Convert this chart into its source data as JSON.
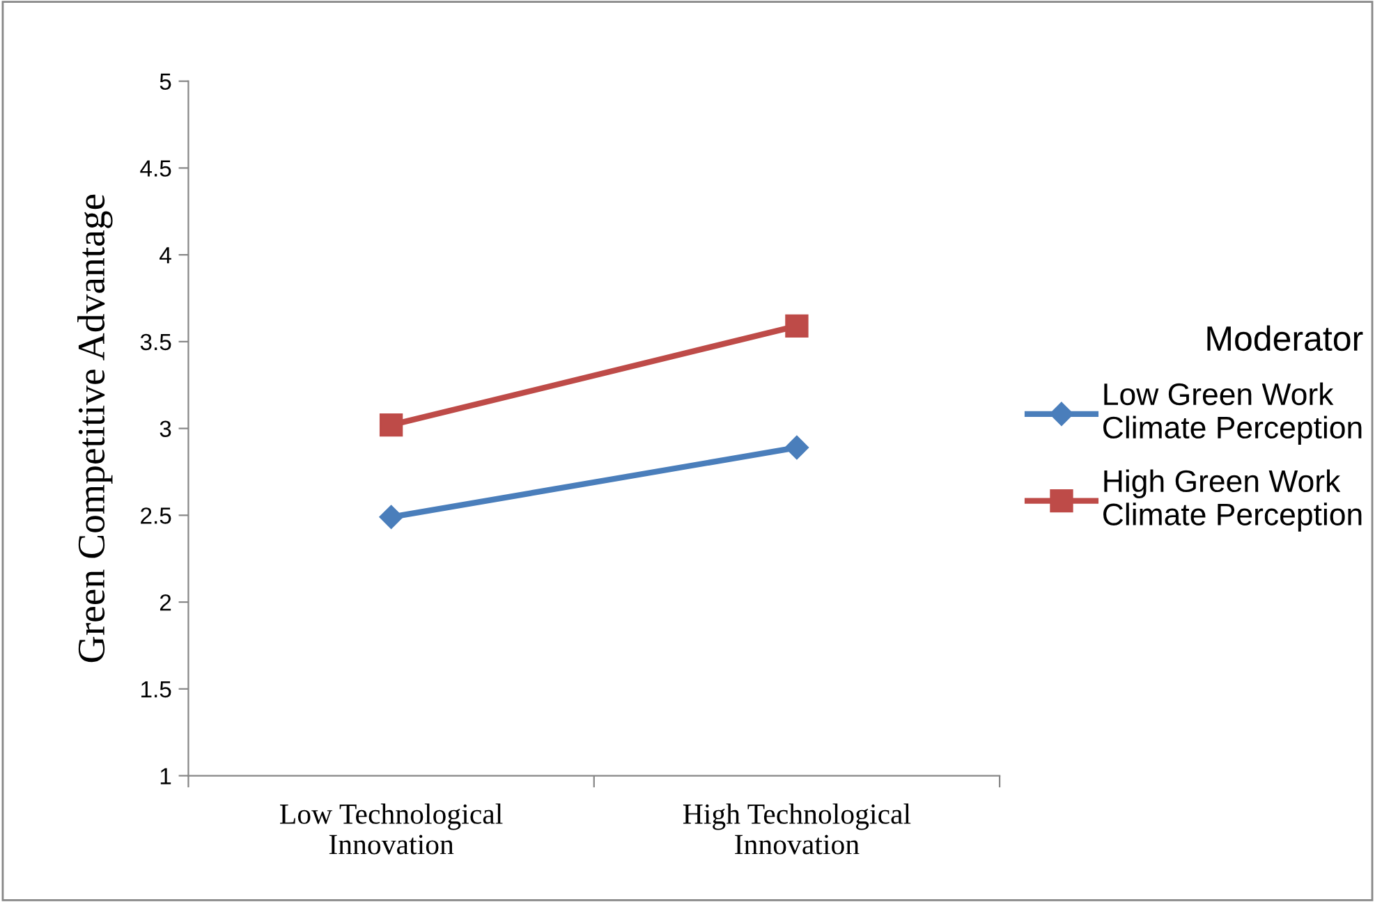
{
  "chart_data": {
    "type": "line",
    "ylabel": "Green Competitive Advantage",
    "categories": [
      "Low Technological\nInnovation",
      "High Technological\nInnovation"
    ],
    "series": [
      {
        "name": "Low Green Work\nClimate Perception",
        "color": "#4a7ebb",
        "marker": "diamond",
        "values": [
          2.49,
          2.89
        ]
      },
      {
        "name": "High Green Work\nClimate Perception",
        "color": "#be4b48",
        "marker": "square",
        "values": [
          3.02,
          3.59
        ]
      }
    ],
    "ylim": [
      1,
      5
    ],
    "yticks": [
      1,
      1.5,
      2,
      2.5,
      3,
      3.5,
      4,
      4.5,
      5
    ],
    "grid": false,
    "legend": "right",
    "legend_title": "Moderator",
    "line_style": "solid"
  }
}
